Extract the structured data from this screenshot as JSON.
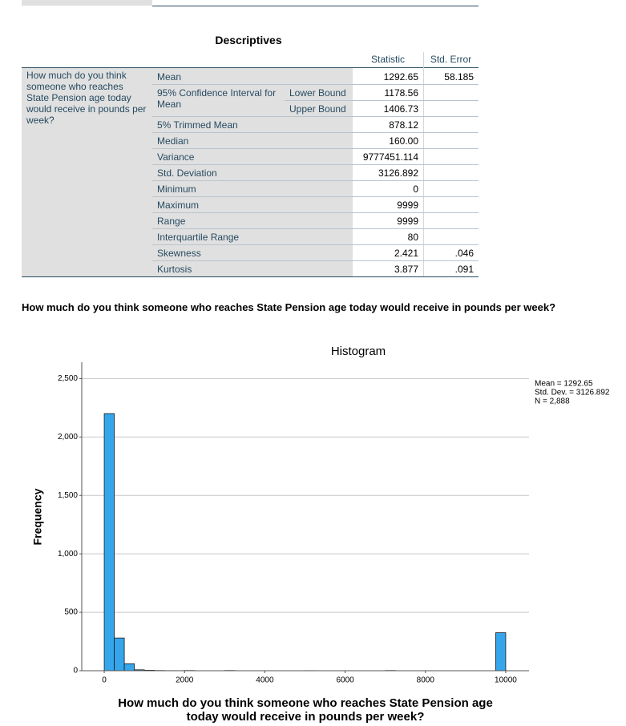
{
  "table": {
    "title": "Descriptives",
    "columns": [
      "Statistic",
      "Std. Error"
    ],
    "variable": "How much do you think someone who reaches State Pension age today would receive in pounds per week?",
    "rows": [
      {
        "label": "Mean",
        "statistic": "1292.65",
        "std_error": "58.185"
      },
      {
        "label": "95% Confidence Interval for Mean",
        "bounds": [
          {
            "label": "Lower Bound",
            "statistic": "1178.56"
          },
          {
            "label": "Upper Bound",
            "statistic": "1406.73"
          }
        ]
      },
      {
        "label": "5% Trimmed Mean",
        "statistic": "878.12"
      },
      {
        "label": "Median",
        "statistic": "160.00"
      },
      {
        "label": "Variance",
        "statistic": "9777451.114"
      },
      {
        "label": "Std. Deviation",
        "statistic": "3126.892"
      },
      {
        "label": "Minimum",
        "statistic": "0"
      },
      {
        "label": "Maximum",
        "statistic": "9999"
      },
      {
        "label": "Range",
        "statistic": "9999"
      },
      {
        "label": "Interquartile Range",
        "statistic": "80"
      },
      {
        "label": "Skewness",
        "statistic": "2.421",
        "std_error": ".046"
      },
      {
        "label": "Kurtosis",
        "statistic": "3.877",
        "std_error": ".091"
      }
    ]
  },
  "heading": "How much do you think someone who reaches State Pension age today would receive in pounds per week?",
  "chart_data": {
    "type": "histogram",
    "title": "Histogram",
    "x_label": [
      "How much do you think someone who reaches State Pension age",
      "today would receive in pounds per week?"
    ],
    "y_label": "Frequency",
    "stats_box": [
      "Mean = 1292.65",
      "Std. Dev. = 3126.892",
      "N = 2,888"
    ],
    "color": "#36a6ec",
    "bins": [
      0,
      250,
      500,
      750,
      1000,
      1250,
      1500,
      1750,
      2000,
      2250,
      2500,
      2750,
      3000,
      3250,
      3500,
      3750,
      4000,
      4250,
      4500,
      4750,
      5000,
      5250,
      5500,
      5750,
      6000,
      6250,
      6500,
      6750,
      7000,
      7250,
      7500,
      7750,
      8000,
      8250,
      8500,
      8750,
      9000,
      9250,
      9500,
      9750,
      10000
    ],
    "counts": [
      2200,
      280,
      60,
      8,
      4,
      2,
      1,
      1,
      2,
      0,
      0,
      0,
      2,
      0,
      0,
      0,
      0,
      0,
      0,
      0,
      1,
      0,
      0,
      0,
      0,
      0,
      0,
      0,
      2,
      0,
      0,
      0,
      0,
      0,
      0,
      0,
      0,
      0,
      0,
      325
    ],
    "xlim": [
      -560,
      10580
    ],
    "xticks": [
      0,
      2000,
      4000,
      6000,
      8000,
      10000
    ],
    "ylim": [
      0,
      2640
    ],
    "yticks": [
      0,
      500,
      {
        "value": 1000,
        "label": "1,000"
      },
      {
        "value": 1500,
        "label": "1,500"
      },
      {
        "value": 2000,
        "label": "2,000"
      },
      {
        "value": 2500,
        "label": "2,500"
      }
    ],
    "grid": true
  }
}
